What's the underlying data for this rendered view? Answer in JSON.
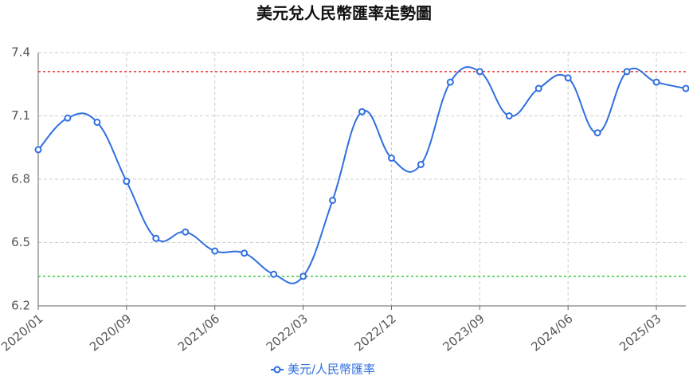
{
  "chart_data": {
    "type": "line",
    "title": "美元兌人民幣匯率走勢圖",
    "categories": [
      "2020/01",
      null,
      null,
      "2020/09",
      null,
      null,
      "2021/06",
      null,
      null,
      "2022/03",
      null,
      null,
      "2022/12",
      null,
      null,
      "2023/09",
      null,
      null,
      "2024/06",
      null,
      null,
      "2025/03",
      null
    ],
    "series": [
      {
        "name": "美元/人民幣匯率",
        "color": "#2f6fe0",
        "values": [
          6.94,
          7.09,
          7.07,
          6.79,
          6.52,
          6.55,
          6.46,
          6.45,
          6.35,
          6.34,
          6.7,
          7.12,
          6.9,
          6.87,
          7.26,
          7.31,
          7.1,
          7.23,
          7.28,
          7.02,
          7.31,
          7.26,
          7.23
        ]
      }
    ],
    "ylim": [
      6.2,
      7.4
    ],
    "yticks": [
      6.2,
      6.5,
      6.8,
      7.1,
      7.4
    ],
    "grid": true,
    "mark_lines": [
      {
        "value": 7.31,
        "color": "#e83030"
      },
      {
        "value": 6.34,
        "color": "#33cc33"
      }
    ],
    "legend": "bottom"
  }
}
